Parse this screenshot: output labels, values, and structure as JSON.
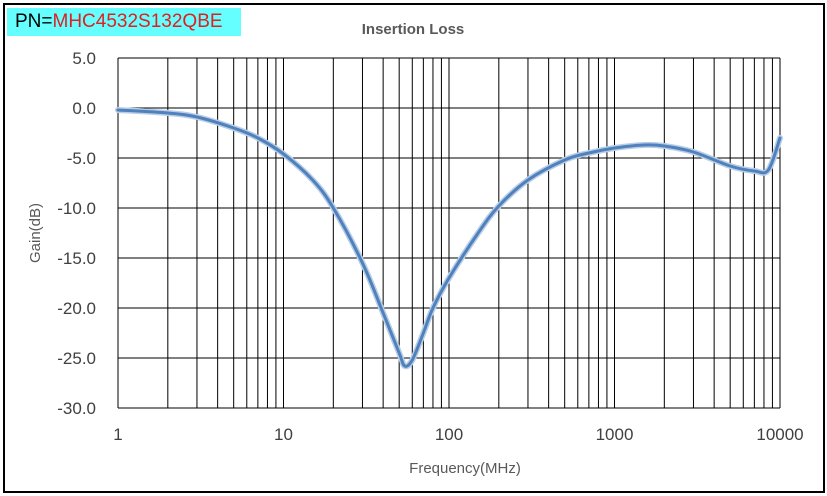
{
  "part_label": {
    "prefix": "PN=",
    "value": "MHC4532S132QBE",
    "bg_color": "#66ffff",
    "value_color": "#e02020"
  },
  "chart_data": {
    "type": "line",
    "title": "Insertion Loss",
    "xlabel": "Frequency(MHz)",
    "ylabel": "Gain(dB)",
    "xscale": "log",
    "xlim": [
      1,
      10000
    ],
    "ylim": [
      -30,
      5
    ],
    "grid": true,
    "x_tick_labels": [
      "1",
      "10",
      "100",
      "1000",
      "10000"
    ],
    "x_ticks": [
      1,
      10,
      100,
      1000,
      10000
    ],
    "y_tick_labels": [
      "5.0",
      "0.0",
      "-5.0",
      "-10.0",
      "-15.0",
      "-20.0",
      "-25.0",
      "-30.0"
    ],
    "y_ticks": [
      5,
      0,
      -5,
      -10,
      -15,
      -20,
      -25,
      -30
    ],
    "series": [
      {
        "name": "Insertion Loss",
        "color": "#4f81bd",
        "x": [
          1,
          2,
          3,
          5,
          7,
          10,
          15,
          20,
          30,
          40,
          50,
          54,
          60,
          70,
          80,
          100,
          150,
          200,
          300,
          500,
          700,
          1000,
          1500,
          2000,
          3000,
          5000,
          7000,
          8500,
          10000
        ],
        "y": [
          -0.2,
          -0.5,
          -0.9,
          -2.0,
          -3.0,
          -4.6,
          -7.2,
          -10.0,
          -15.5,
          -20.5,
          -24.5,
          -25.8,
          -25.2,
          -22.5,
          -20.0,
          -17.0,
          -12.5,
          -9.8,
          -7.2,
          -5.2,
          -4.5,
          -4.0,
          -3.7,
          -3.8,
          -4.4,
          -5.8,
          -6.3,
          -6.2,
          -3.0
        ]
      }
    ]
  }
}
